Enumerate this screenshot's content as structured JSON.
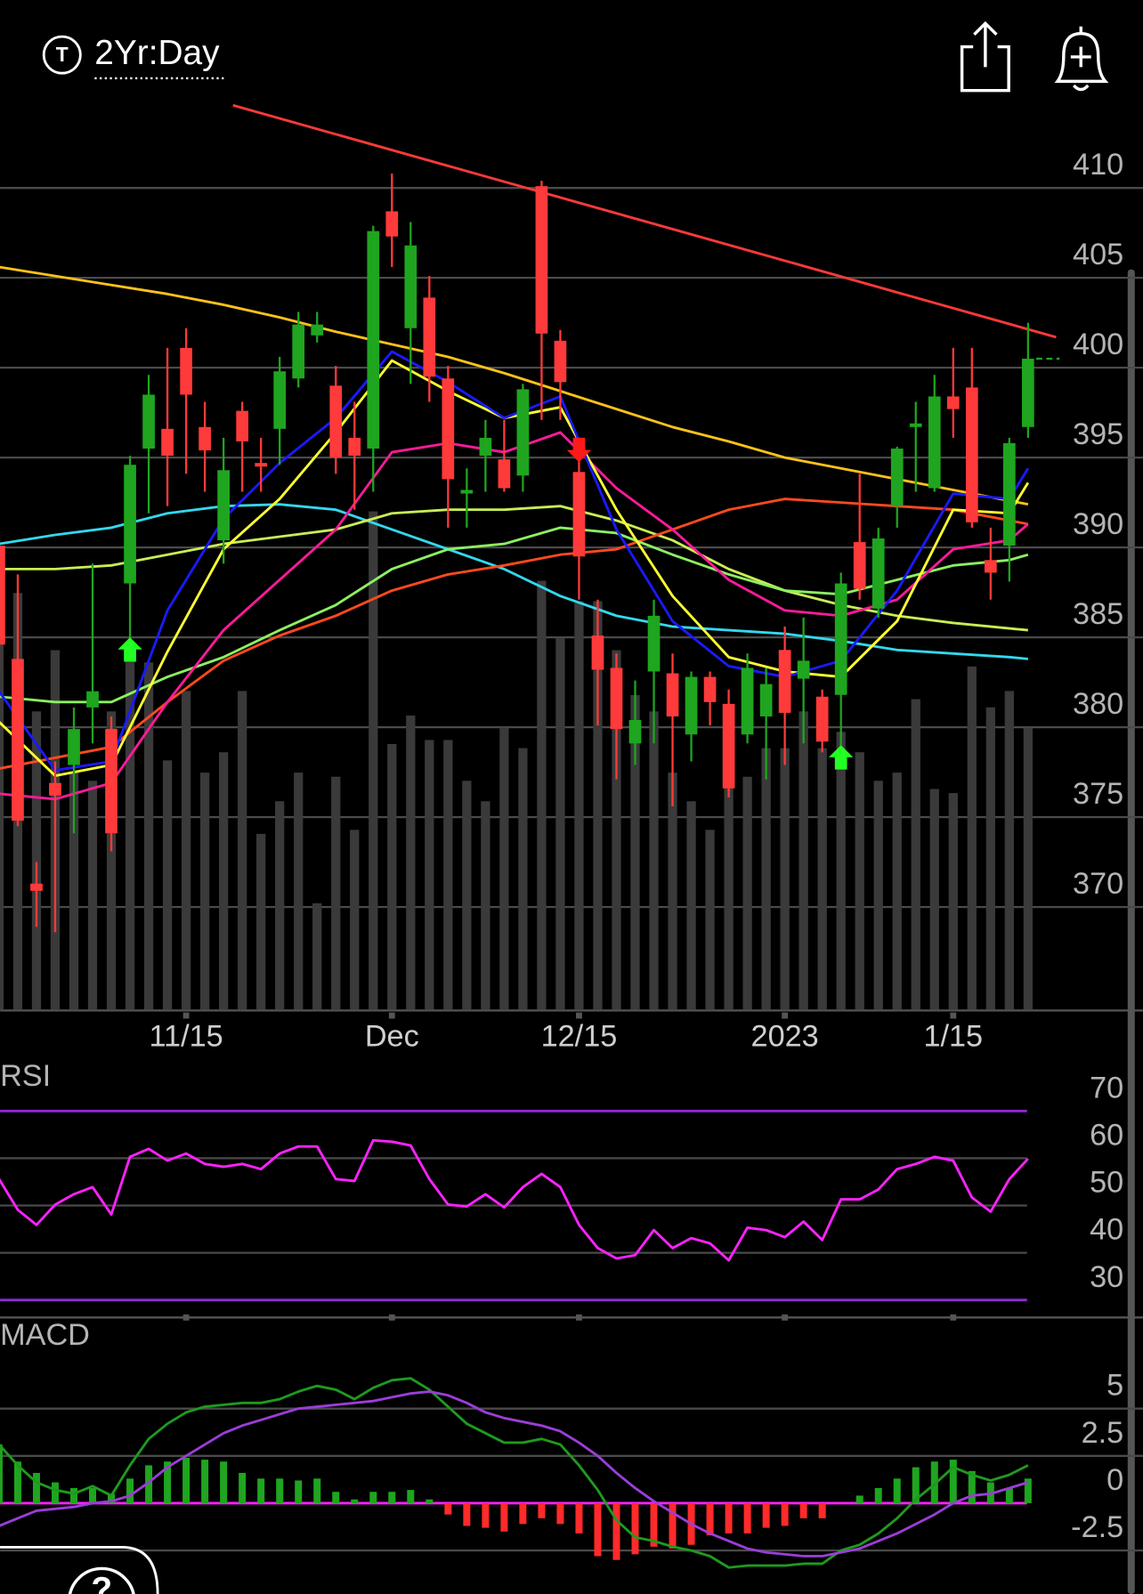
{
  "header": {
    "badge": "T",
    "timeframe": "2Yr:Day",
    "help": "?"
  },
  "chart_data": [
    {
      "type": "candlestick",
      "categories": [
        null,
        null,
        null,
        null,
        null,
        null,
        null,
        null,
        null,
        null,
        "11/15",
        null,
        null,
        null,
        null,
        null,
        null,
        null,
        null,
        null,
        null,
        "Dec",
        null,
        null,
        null,
        null,
        null,
        null,
        null,
        null,
        null,
        "12/15",
        null,
        null,
        null,
        null,
        null,
        null,
        null,
        null,
        null,
        null,
        "2023",
        null,
        null,
        null,
        null,
        null,
        null,
        null,
        null,
        "1/15",
        null,
        null,
        null,
        null
      ],
      "open": [
        390.1,
        383.8,
        371.3,
        376.9,
        377.9,
        381.1,
        379.9,
        388.0,
        395.5,
        396.6,
        401.1,
        396.7,
        390.4,
        397.6,
        394.7,
        396.6,
        399.4,
        401.8,
        399.0,
        396.1,
        395.5,
        408.7,
        402.2,
        403.9,
        399.4,
        393.0,
        395.1,
        394.9,
        394.0,
        410.1,
        401.5,
        394.2,
        385.1,
        383.3,
        379.1,
        383.1,
        383.0,
        379.6,
        382.8,
        381.3,
        379.6,
        380.6,
        384.3,
        382.7,
        381.7,
        381.8,
        390.3,
        386.6,
        392.3,
        396.7,
        393.3,
        398.4,
        398.9,
        389.3,
        390.1,
        396.7
      ],
      "high": [
        390.6,
        388.5,
        372.5,
        378.1,
        381.1,
        389.1,
        380.6,
        395.1,
        399.6,
        401.1,
        402.2,
        398.1,
        396.1,
        398.1,
        396.1,
        400.6,
        403.1,
        403.1,
        400.1,
        398.1,
        407.9,
        410.8,
        408.1,
        405.1,
        400.1,
        394.4,
        397.1,
        397.1,
        399.1,
        410.4,
        402.1,
        396.1,
        387.1,
        384.1,
        382.6,
        387.1,
        384.1,
        383.1,
        383.1,
        382.1,
        384.1,
        383.3,
        385.6,
        386.1,
        382.1,
        388.6,
        394.1,
        391.1,
        395.6,
        398.1,
        399.6,
        401.1,
        401.1,
        391.1,
        396.1,
        402.5
      ],
      "low": [
        383.1,
        374.5,
        368.9,
        368.6,
        374.1,
        379.1,
        373.1,
        384.1,
        391.9,
        392.3,
        394.1,
        393.1,
        389.1,
        393.1,
        393.1,
        394.6,
        398.9,
        401.4,
        394.1,
        392.1,
        393.1,
        405.6,
        399.1,
        398.1,
        391.1,
        391.1,
        393.1,
        393.1,
        393.1,
        397.1,
        397.1,
        387.1,
        380.1,
        377.1,
        377.9,
        379.1,
        375.6,
        378.1,
        380.1,
        376.1,
        379.1,
        377.1,
        377.9,
        379.1,
        378.6,
        378.1,
        387.1,
        386.1,
        391.1,
        393.1,
        393.1,
        396.1,
        391.1,
        387.1,
        388.1,
        396.1
      ],
      "close": [
        384.6,
        374.8,
        370.9,
        376.2,
        379.9,
        382.0,
        374.1,
        394.6,
        398.5,
        395.1,
        398.5,
        395.4,
        394.3,
        395.9,
        394.5,
        399.8,
        402.4,
        402.4,
        395.0,
        395.1,
        407.6,
        407.3,
        406.8,
        399.5,
        393.8,
        393.2,
        396.1,
        393.3,
        398.8,
        401.9,
        399.2,
        389.5,
        383.2,
        379.9,
        380.4,
        386.2,
        380.6,
        382.8,
        381.4,
        376.6,
        383.3,
        382.4,
        380.8,
        383.7,
        379.2,
        388.0,
        387.7,
        390.5,
        395.5,
        396.9,
        398.4,
        397.7,
        391.4,
        388.6,
        395.8,
        400.5
      ],
      "volume": [
        98,
        102,
        73,
        88,
        58,
        56,
        73,
        87,
        85,
        61,
        78,
        58,
        63,
        78,
        43,
        51,
        58,
        26,
        57,
        44,
        122,
        65,
        72,
        66,
        66,
        56,
        51,
        69,
        64,
        105,
        91,
        100,
        100,
        88,
        77,
        73,
        58,
        51,
        44,
        55,
        57,
        64,
        64,
        73,
        64,
        68,
        63,
        56,
        58,
        76,
        54,
        53,
        84,
        74,
        78,
        69
      ],
      "up_color": "#1fa51f",
      "down_color": "#ff3a3a",
      "volume_color": "#3a3a3a",
      "overlays": {
        "x": [
          0,
          3,
          6,
          9,
          12,
          15,
          18,
          21,
          24,
          27,
          30,
          33,
          36,
          39,
          42,
          45,
          48,
          51,
          54,
          55
        ],
        "series": [
          {
            "color": "#ffc21a",
            "values": [
              405.6,
              405.1,
              404.6,
              404.1,
              403.5,
              402.8,
              402.0,
              401.3,
              400.6,
              399.7,
              398.7,
              397.7,
              396.7,
              395.9,
              395.0,
              394.4,
              393.8,
              393.2,
              392.6,
              392.4
            ]
          },
          {
            "color": "#33d8ee",
            "values": [
              390.2,
              390.7,
              391.1,
              391.9,
              392.3,
              392.4,
              392.1,
              391.0,
              389.9,
              388.8,
              387.3,
              386.2,
              385.6,
              385.4,
              385.2,
              384.8,
              384.3,
              384.1,
              383.9,
              383.8
            ]
          },
          {
            "color": "#c8ee55",
            "values": [
              388.8,
              388.8,
              389.0,
              389.6,
              390.2,
              390.6,
              391.0,
              391.9,
              392.1,
              392.1,
              392.3,
              391.5,
              390.4,
              388.8,
              387.6,
              386.8,
              386.2,
              385.8,
              385.5,
              385.4
            ]
          },
          {
            "color": "#ff4a1e",
            "values": [
              377.7,
              378.3,
              378.9,
              381.4,
              383.7,
              385.1,
              386.2,
              387.6,
              388.5,
              389.0,
              389.6,
              389.9,
              391.0,
              392.1,
              392.7,
              392.5,
              392.3,
              392.1,
              391.5,
              391.3
            ]
          },
          {
            "color": "#8cf060",
            "values": [
              381.7,
              381.4,
              381.4,
              382.8,
              383.9,
              385.4,
              386.8,
              388.8,
              389.9,
              390.2,
              391.1,
              390.8,
              389.6,
              388.5,
              387.6,
              387.4,
              388.2,
              389.0,
              389.3,
              389.6
            ]
          },
          {
            "color": "#ff1a9a",
            "values": [
              376.3,
              376.0,
              376.9,
              381.4,
              385.4,
              388.2,
              391.0,
              395.3,
              395.8,
              395.3,
              396.4,
              393.3,
              391.0,
              388.2,
              386.5,
              386.2,
              387.1,
              389.9,
              390.4,
              391.3
            ]
          },
          {
            "color": "#ffff33",
            "values": [
              380.3,
              377.3,
              377.9,
              384.2,
              389.9,
              392.7,
              396.4,
              400.4,
              398.7,
              397.2,
              397.8,
              392.1,
              387.3,
              383.9,
              383.1,
              382.8,
              385.9,
              392.1,
              391.9,
              393.6
            ]
          },
          {
            "color": "#1a1aff",
            "values": [
              382.0,
              377.6,
              378.1,
              386.5,
              391.6,
              394.7,
              397.2,
              400.9,
              399.2,
              397.2,
              398.4,
              391.0,
              385.9,
              383.4,
              382.8,
              383.7,
              387.6,
              393.0,
              392.7,
              394.4
            ]
          }
        ]
      },
      "trendline": {
        "x": [
          12.5,
          56.5
        ],
        "values": [
          414.6,
          401.7
        ],
        "color": "#ff3a3a"
      },
      "signals": [
        {
          "x": 7,
          "direction": "up",
          "color": "#22ff22"
        },
        {
          "x": 31,
          "direction": "down",
          "color": "#ff1a1a"
        },
        {
          "x": 45,
          "direction": "up",
          "color": "#22ff22"
        }
      ],
      "ylim": [
        364.3,
        414.8
      ],
      "yticks": [
        370,
        375,
        380,
        385,
        390,
        395,
        400,
        405,
        410
      ],
      "grid": true,
      "grid_color": "#4a4a4a"
    },
    {
      "type": "line",
      "title": "RSI",
      "color": "#ff22ff",
      "values": [
        55.6,
        49.1,
        45.9,
        50.2,
        52.4,
        53.9,
        48.1,
        60.3,
        62.0,
        59.5,
        61.0,
        58.8,
        58.2,
        58.8,
        57.7,
        61.0,
        62.5,
        62.5,
        55.6,
        55.2,
        63.8,
        63.5,
        62.7,
        55.6,
        50.2,
        49.8,
        52.4,
        49.6,
        53.9,
        56.7,
        53.9,
        45.9,
        41.0,
        38.8,
        39.5,
        44.8,
        41.0,
        43.1,
        42.0,
        38.4,
        45.3,
        44.8,
        43.3,
        46.6,
        42.7,
        51.3,
        51.3,
        53.4,
        57.7,
        58.8,
        60.3,
        59.5,
        51.7,
        48.7,
        55.6,
        59.9
      ],
      "ylim": [
        27.6,
        80.3
      ],
      "yticks": [
        30,
        40,
        50,
        60,
        70
      ],
      "grid": true,
      "grid_color": "#4a4a4a",
      "band_color": "#8e2bd6"
    },
    {
      "type": "macd",
      "title": "MACD",
      "series": [
        {
          "color": "#1f9a1f",
          "values": [
            3.1,
            2.0,
            1.1,
            0.7,
            0.5,
            0.9,
            0.4,
            2.0,
            3.4,
            4.2,
            4.8,
            5.1,
            5.2,
            5.3,
            5.3,
            5.5,
            5.9,
            6.2,
            6.0,
            5.5,
            6.1,
            6.5,
            6.6,
            6.0,
            5.1,
            4.2,
            3.7,
            3.2,
            3.2,
            3.4,
            3.1,
            2.0,
            0.7,
            -0.9,
            -1.8,
            -2.0,
            -2.3,
            -2.5,
            -2.8,
            -3.4,
            -3.3,
            -3.3,
            -3.3,
            -3.2,
            -3.2,
            -2.5,
            -2.2,
            -1.6,
            -0.8,
            0.2,
            1.0,
            1.9,
            1.5,
            1.2,
            1.5,
            2.0
          ]
        },
        {
          "color": "#9b3dd8",
          "values": [
            -1.2,
            -0.8,
            -0.4,
            -0.3,
            -0.2,
            0,
            0.1,
            0.4,
            1.1,
            1.9,
            2.5,
            3.1,
            3.7,
            4.1,
            4.4,
            4.7,
            5.0,
            5.1,
            5.2,
            5.3,
            5.4,
            5.6,
            5.8,
            5.9,
            5.7,
            5.3,
            4.8,
            4.5,
            4.3,
            4.1,
            3.8,
            3.2,
            2.5,
            1.6,
            0.8,
            0.1,
            -0.5,
            -1.1,
            -1.6,
            -2.0,
            -2.4,
            -2.6,
            -2.7,
            -2.8,
            -2.8,
            -2.6,
            -2.4,
            -2.0,
            -1.6,
            -1.1,
            -0.6,
            0,
            0.4,
            0.5,
            0.8,
            1.1
          ]
        }
      ],
      "histogram": [
        3.1,
        2.2,
        1.6,
        1.1,
        0.8,
        0.8,
        0.5,
        1.3,
        2.0,
        2.2,
        2.4,
        2.3,
        2.2,
        1.6,
        1.3,
        1.3,
        1.2,
        1.3,
        0.6,
        0.2,
        0.6,
        0.6,
        0.7,
        0.2,
        -0.6,
        -1.2,
        -1.3,
        -1.5,
        -1.1,
        -0.8,
        -1.1,
        -1.6,
        -2.8,
        -3.0,
        -2.7,
        -2.3,
        -2.4,
        -2.2,
        -1.7,
        -1.6,
        -1.6,
        -1.3,
        -1.2,
        -0.8,
        -0.8,
        0,
        0.4,
        0.8,
        1.3,
        1.9,
        2.2,
        2.3,
        1.7,
        1.1,
        0.8,
        1.3
      ],
      "up_color": "#1fa51f",
      "down_color": "#ff2a2a",
      "ylim": [
        -4.8,
        9.6
      ],
      "yticks": [
        -2.5,
        0,
        2.5,
        5
      ],
      "grid": true,
      "grid_color": "#4a4a4a",
      "zero_color": "#ff22ff"
    }
  ]
}
